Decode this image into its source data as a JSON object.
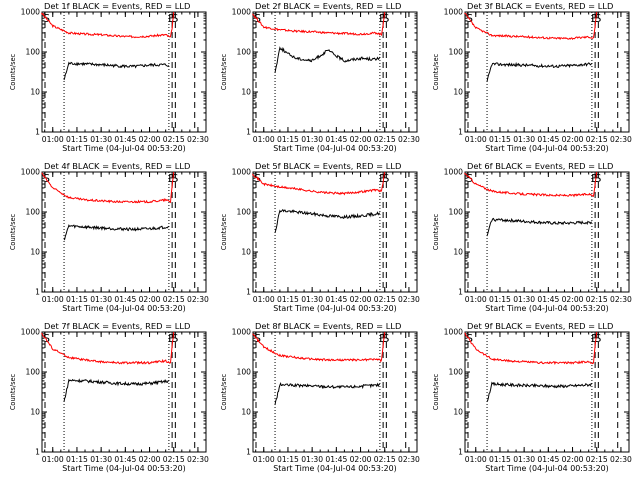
{
  "chart_data": [
    {
      "type": "line",
      "title": "Det 1f BLACK = Events, RED = LLD",
      "xlabel": "Start Time (04-Jul-04 00:53:20)",
      "ylabel": "Counts/sec",
      "yscale": "log",
      "ylim": [
        1,
        1000
      ],
      "xlim": [
        "00:53:20",
        "02:35:00"
      ],
      "x_ticks": [
        "01:00",
        "01:15",
        "01:30",
        "01:45",
        "02:00",
        "02:15",
        "02:30"
      ],
      "y_ticks": [
        "1",
        "10",
        "100",
        "1000"
      ],
      "markers": [
        {
          "label": "E",
          "time": "02:14",
          "style": "dashed"
        },
        {
          "label": "S",
          "time": "02:16",
          "style": "dashed"
        },
        {
          "label": "",
          "time": "02:28",
          "style": "dashed"
        }
      ],
      "dotted_lines": [
        "01:07",
        "02:12"
      ],
      "series": [
        {
          "name": "LLD",
          "color": "#ff0000",
          "x": [
            "00:53",
            "01:00",
            "01:10",
            "01:20",
            "01:30",
            "01:40",
            "01:50",
            "02:00",
            "02:10",
            "02:13",
            "02:14",
            "02:15"
          ],
          "values": [
            950,
            450,
            300,
            280,
            270,
            250,
            240,
            250,
            270,
            230,
            400,
            1000
          ]
        },
        {
          "name": "Events",
          "color": "#000000",
          "x": [
            "01:07",
            "01:10",
            "01:20",
            "01:30",
            "01:40",
            "01:50",
            "02:00",
            "02:10",
            "02:12"
          ],
          "values": [
            20,
            52,
            50,
            48,
            45,
            43,
            47,
            48,
            46
          ]
        }
      ]
    },
    {
      "type": "line",
      "title": "Det 2f BLACK = Events, RED = LLD",
      "xlabel": "Start Time (04-Jul-04 00:53:20)",
      "ylabel": "Counts/sec",
      "yscale": "log",
      "ylim": [
        1,
        1000
      ],
      "xlim": [
        "00:53:20",
        "02:35:00"
      ],
      "x_ticks": [
        "01:00",
        "01:15",
        "01:30",
        "01:45",
        "02:00",
        "02:15",
        "02:30"
      ],
      "y_ticks": [
        "1",
        "10",
        "100",
        "1000"
      ],
      "markers": [
        {
          "label": "E",
          "time": "02:14",
          "style": "dashed"
        },
        {
          "label": "S",
          "time": "02:16",
          "style": "dashed"
        },
        {
          "label": "",
          "time": "02:28",
          "style": "dashed"
        }
      ],
      "dotted_lines": [
        "01:07",
        "02:12"
      ],
      "series": [
        {
          "name": "LLD",
          "color": "#ff0000",
          "x": [
            "00:53",
            "01:00",
            "01:10",
            "01:20",
            "01:30",
            "01:40",
            "01:50",
            "02:00",
            "02:10",
            "02:13",
            "02:14",
            "02:15"
          ],
          "values": [
            900,
            420,
            360,
            330,
            320,
            300,
            290,
            280,
            300,
            270,
            500,
            1000
          ]
        },
        {
          "name": "Events",
          "color": "#000000",
          "x": [
            "01:07",
            "01:10",
            "01:15",
            "01:20",
            "01:30",
            "01:40",
            "01:45",
            "01:50",
            "02:00",
            "02:10",
            "02:12"
          ],
          "values": [
            30,
            130,
            90,
            70,
            60,
            110,
            80,
            60,
            70,
            65,
            75
          ]
        }
      ]
    },
    {
      "type": "line",
      "title": "Det 3f BLACK = Events, RED = LLD",
      "xlabel": "Start Time (04-Jul-04 00:53:20)",
      "ylabel": "Counts/sec",
      "yscale": "log",
      "ylim": [
        1,
        1000
      ],
      "xlim": [
        "00:53:20",
        "02:35:00"
      ],
      "x_ticks": [
        "01:00",
        "01:15",
        "01:30",
        "01:45",
        "02:00",
        "02:15",
        "02:30"
      ],
      "y_ticks": [
        "1",
        "10",
        "100",
        "1000"
      ],
      "markers": [
        {
          "label": "E",
          "time": "02:14",
          "style": "dashed"
        },
        {
          "label": "S",
          "time": "02:16",
          "style": "dashed"
        },
        {
          "label": "",
          "time": "02:28",
          "style": "dashed"
        }
      ],
      "dotted_lines": [
        "01:07",
        "02:12"
      ],
      "series": [
        {
          "name": "LLD",
          "color": "#ff0000",
          "x": [
            "00:53",
            "01:00",
            "01:10",
            "01:20",
            "01:30",
            "01:40",
            "01:50",
            "02:00",
            "02:10",
            "02:13",
            "02:14",
            "02:15"
          ],
          "values": [
            950,
            400,
            260,
            250,
            240,
            230,
            220,
            220,
            240,
            220,
            450,
            1000
          ]
        },
        {
          "name": "Events",
          "color": "#000000",
          "x": [
            "01:07",
            "01:10",
            "01:20",
            "01:30",
            "01:40",
            "01:50",
            "02:00",
            "02:10",
            "02:12"
          ],
          "values": [
            18,
            50,
            48,
            47,
            45,
            44,
            46,
            50,
            52
          ]
        }
      ]
    },
    {
      "type": "line",
      "title": "Det 4f BLACK = Events, RED = LLD",
      "xlabel": "Start Time (04-Jul-04 00:53:20)",
      "ylabel": "Counts/sec",
      "yscale": "log",
      "ylim": [
        1,
        1000
      ],
      "xlim": [
        "00:53:20",
        "02:35:00"
      ],
      "x_ticks": [
        "01:00",
        "01:15",
        "01:30",
        "01:45",
        "02:00",
        "02:15",
        "02:30"
      ],
      "y_ticks": [
        "1",
        "10",
        "100",
        "1000"
      ],
      "markers": [
        {
          "label": "E",
          "time": "02:14",
          "style": "dashed"
        },
        {
          "label": "S",
          "time": "02:16",
          "style": "dashed"
        },
        {
          "label": "",
          "time": "02:28",
          "style": "dashed"
        }
      ],
      "dotted_lines": [
        "01:07",
        "02:12"
      ],
      "series": [
        {
          "name": "LLD",
          "color": "#ff0000",
          "x": [
            "00:53",
            "01:00",
            "01:10",
            "01:20",
            "01:30",
            "01:40",
            "01:50",
            "02:00",
            "02:10",
            "02:13",
            "02:14",
            "02:15"
          ],
          "values": [
            950,
            400,
            230,
            200,
            190,
            180,
            180,
            180,
            200,
            180,
            450,
            1000
          ]
        },
        {
          "name": "Events",
          "color": "#000000",
          "x": [
            "01:07",
            "01:10",
            "01:20",
            "01:30",
            "01:40",
            "01:50",
            "02:00",
            "02:10",
            "02:12"
          ],
          "values": [
            20,
            45,
            42,
            40,
            38,
            37,
            38,
            42,
            44
          ]
        }
      ]
    },
    {
      "type": "line",
      "title": "Det 5f BLACK = Events, RED = LLD",
      "xlabel": "Start Time (04-Jul-04 00:53:20)",
      "ylabel": "Counts/sec",
      "yscale": "log",
      "ylim": [
        1,
        1000
      ],
      "xlim": [
        "00:53:20",
        "02:35:00"
      ],
      "x_ticks": [
        "01:00",
        "01:15",
        "01:30",
        "01:45",
        "02:00",
        "02:15",
        "02:30"
      ],
      "y_ticks": [
        "1",
        "10",
        "100",
        "1000"
      ],
      "markers": [
        {
          "label": "E",
          "time": "02:14",
          "style": "dashed"
        },
        {
          "label": "S",
          "time": "02:16",
          "style": "dashed"
        },
        {
          "label": "",
          "time": "02:28",
          "style": "dashed"
        }
      ],
      "dotted_lines": [
        "01:07",
        "02:12"
      ],
      "series": [
        {
          "name": "LLD",
          "color": "#ff0000",
          "x": [
            "00:53",
            "01:00",
            "01:10",
            "01:20",
            "01:30",
            "01:40",
            "01:50",
            "02:00",
            "02:10",
            "02:13",
            "02:14",
            "02:15"
          ],
          "values": [
            900,
            500,
            420,
            380,
            330,
            300,
            290,
            320,
            360,
            330,
            550,
            1000
          ]
        },
        {
          "name": "Events",
          "color": "#000000",
          "x": [
            "01:07",
            "01:10",
            "01:20",
            "01:30",
            "01:40",
            "01:50",
            "02:00",
            "02:10",
            "02:12"
          ],
          "values": [
            30,
            110,
            100,
            90,
            80,
            75,
            80,
            90,
            95
          ]
        }
      ]
    },
    {
      "type": "line",
      "title": "Det 6f BLACK = Events, RED = LLD",
      "xlabel": "Start Time (04-Jul-04 00:53:20)",
      "ylabel": "Counts/sec",
      "yscale": "log",
      "ylim": [
        1,
        1000
      ],
      "xlim": [
        "00:53:20",
        "02:35:00"
      ],
      "x_ticks": [
        "01:00",
        "01:15",
        "01:30",
        "01:45",
        "02:00",
        "02:15",
        "02:30"
      ],
      "y_ticks": [
        "1",
        "10",
        "100",
        "1000"
      ],
      "markers": [
        {
          "label": "E",
          "time": "02:14",
          "style": "dashed"
        },
        {
          "label": "S",
          "time": "02:16",
          "style": "dashed"
        },
        {
          "label": "",
          "time": "02:28",
          "style": "dashed"
        }
      ],
      "dotted_lines": [
        "01:07",
        "02:12"
      ],
      "series": [
        {
          "name": "LLD",
          "color": "#ff0000",
          "x": [
            "00:53",
            "01:00",
            "01:10",
            "01:20",
            "01:30",
            "01:40",
            "01:50",
            "02:00",
            "02:10",
            "02:13",
            "02:14",
            "02:15"
          ],
          "values": [
            950,
            500,
            330,
            300,
            280,
            270,
            260,
            260,
            280,
            260,
            500,
            1000
          ]
        },
        {
          "name": "Events",
          "color": "#000000",
          "x": [
            "01:07",
            "01:10",
            "01:20",
            "01:30",
            "01:40",
            "01:50",
            "02:00",
            "02:10",
            "02:12"
          ],
          "values": [
            25,
            65,
            62,
            58,
            55,
            52,
            53,
            55,
            56
          ]
        }
      ]
    },
    {
      "type": "line",
      "title": "Det 7f BLACK = Events, RED = LLD",
      "xlabel": "Start Time (04-Jul-04 00:53:20)",
      "ylabel": "Counts/sec",
      "yscale": "log",
      "ylim": [
        1,
        1000
      ],
      "xlim": [
        "00:53:20",
        "02:35:00"
      ],
      "x_ticks": [
        "01:00",
        "01:15",
        "01:30",
        "01:45",
        "02:00",
        "02:15",
        "02:30"
      ],
      "y_ticks": [
        "1",
        "10",
        "100",
        "1000"
      ],
      "markers": [
        {
          "label": "E",
          "time": "02:14",
          "style": "dashed"
        },
        {
          "label": "S",
          "time": "02:16",
          "style": "dashed"
        },
        {
          "label": "",
          "time": "02:28",
          "style": "dashed"
        }
      ],
      "dotted_lines": [
        "01:07",
        "02:12"
      ],
      "series": [
        {
          "name": "LLD",
          "color": "#ff0000",
          "x": [
            "00:53",
            "01:00",
            "01:10",
            "01:20",
            "01:30",
            "01:40",
            "01:50",
            "02:00",
            "02:10",
            "02:13",
            "02:14",
            "02:15"
          ],
          "values": [
            950,
            380,
            230,
            200,
            180,
            170,
            170,
            170,
            190,
            170,
            450,
            1000
          ]
        },
        {
          "name": "Events",
          "color": "#000000",
          "x": [
            "01:07",
            "01:10",
            "01:20",
            "01:30",
            "01:40",
            "01:50",
            "02:00",
            "02:10",
            "02:12"
          ],
          "values": [
            18,
            62,
            60,
            56,
            52,
            50,
            52,
            58,
            60
          ]
        }
      ]
    },
    {
      "type": "line",
      "title": "Det 8f BLACK = Events, RED = LLD",
      "xlabel": "Start Time (04-Jul-04 00:53:20)",
      "ylabel": "Counts/sec",
      "yscale": "log",
      "ylim": [
        1,
        1000
      ],
      "xlim": [
        "00:53:20",
        "02:35:00"
      ],
      "x_ticks": [
        "01:00",
        "01:15",
        "01:30",
        "01:45",
        "02:00",
        "02:15",
        "02:30"
      ],
      "y_ticks": [
        "1",
        "10",
        "100",
        "1000"
      ],
      "markers": [
        {
          "label": "E",
          "time": "02:14",
          "style": "dashed"
        },
        {
          "label": "S",
          "time": "02:16",
          "style": "dashed"
        },
        {
          "label": "",
          "time": "02:28",
          "style": "dashed"
        }
      ],
      "dotted_lines": [
        "01:07",
        "02:12"
      ],
      "series": [
        {
          "name": "LLD",
          "color": "#ff0000",
          "x": [
            "00:53",
            "01:00",
            "01:10",
            "01:20",
            "01:30",
            "01:40",
            "01:50",
            "02:00",
            "02:10",
            "02:13",
            "02:14",
            "02:15"
          ],
          "values": [
            900,
            420,
            260,
            230,
            210,
            200,
            200,
            200,
            210,
            190,
            450,
            1000
          ]
        },
        {
          "name": "Events",
          "color": "#000000",
          "x": [
            "01:07",
            "01:10",
            "01:20",
            "01:30",
            "01:40",
            "01:50",
            "02:00",
            "02:10",
            "02:12"
          ],
          "values": [
            15,
            48,
            46,
            45,
            43,
            42,
            44,
            47,
            49
          ]
        }
      ]
    },
    {
      "type": "line",
      "title": "Det 9f BLACK = Events, RED = LLD",
      "xlabel": "Start Time (04-Jul-04 00:53:20)",
      "ylabel": "Counts/sec",
      "yscale": "log",
      "ylim": [
        1,
        1000
      ],
      "xlim": [
        "00:53:20",
        "02:35:00"
      ],
      "x_ticks": [
        "01:00",
        "01:15",
        "01:30",
        "01:45",
        "02:00",
        "02:15",
        "02:30"
      ],
      "y_ticks": [
        "1",
        "10",
        "100",
        "1000"
      ],
      "markers": [
        {
          "label": "E",
          "time": "02:14",
          "style": "dashed"
        },
        {
          "label": "S",
          "time": "02:16",
          "style": "dashed"
        },
        {
          "label": "",
          "time": "02:28",
          "style": "dashed"
        }
      ],
      "dotted_lines": [
        "01:07",
        "02:12"
      ],
      "series": [
        {
          "name": "LLD",
          "color": "#ff0000",
          "x": [
            "00:53",
            "01:00",
            "01:10",
            "01:20",
            "01:30",
            "01:40",
            "01:50",
            "02:00",
            "02:10",
            "02:13",
            "02:14",
            "02:15"
          ],
          "values": [
            950,
            380,
            210,
            190,
            180,
            170,
            170,
            170,
            180,
            170,
            450,
            1000
          ]
        },
        {
          "name": "Events",
          "color": "#000000",
          "x": [
            "01:07",
            "01:10",
            "01:20",
            "01:30",
            "01:40",
            "01:50",
            "02:00",
            "02:10",
            "02:12"
          ],
          "values": [
            18,
            50,
            48,
            46,
            45,
            44,
            45,
            48,
            50
          ]
        }
      ]
    }
  ]
}
